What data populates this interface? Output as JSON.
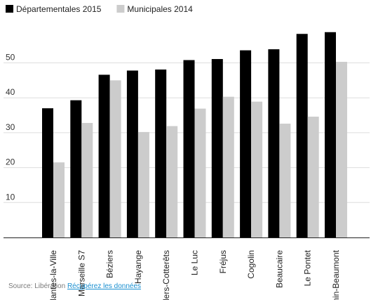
{
  "chart_data": {
    "type": "bar",
    "categories": [
      "Mantes-la-Ville",
      "Marseille S7",
      "Béziers",
      "Hayange",
      "Villers-Cotterêts",
      "Le Luc",
      "Fréjus",
      "Cogolin",
      "Beaucaire",
      "Le Pontet",
      "Hénin-Beaumont"
    ],
    "series": [
      {
        "name": "Départementales 2015",
        "values": [
          37,
          39.3,
          46.6,
          47.8,
          48.1,
          50.8,
          51.1,
          53.6,
          53.9,
          58.3,
          58.8
        ],
        "color": "#000000"
      },
      {
        "name": "Municipales 2014",
        "values": [
          21.5,
          32.8,
          45,
          30.2,
          31.9,
          36.9,
          40.3,
          38.9,
          32.6,
          34.6,
          50.3
        ],
        "color": "#cccccc"
      }
    ],
    "yticks": [
      10,
      20,
      30,
      40,
      50
    ],
    "ylim": [
      0,
      60
    ],
    "grid": true,
    "legend_position": "top-left"
  },
  "source": {
    "label": "Source: Libération",
    "link_text": "Récupérez les données"
  }
}
